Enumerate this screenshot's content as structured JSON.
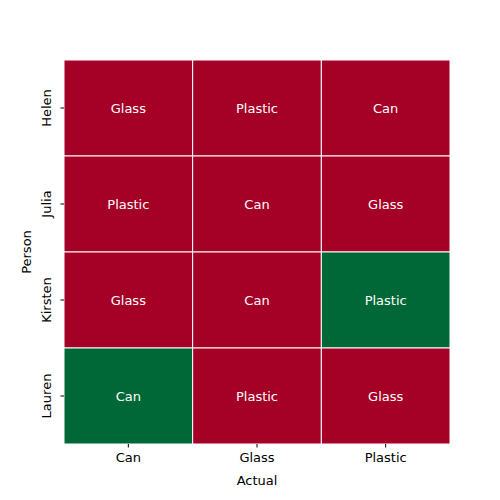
{
  "chart_data": {
    "type": "heatmap",
    "x_label": "Actual",
    "y_label": "Person",
    "x_categories": [
      "Can",
      "Glass",
      "Plastic"
    ],
    "y_categories": [
      "Helen",
      "Julia",
      "Kirsten",
      "Lauren"
    ],
    "values": [
      [
        0,
        0,
        0
      ],
      [
        0,
        0,
        0
      ],
      [
        0,
        0,
        1
      ],
      [
        1,
        0,
        0
      ]
    ],
    "value_labels": [
      [
        "Glass",
        "Plastic",
        "Can"
      ],
      [
        "Plastic",
        "Can",
        "Glass"
      ],
      [
        "Glass",
        "Can",
        "Plastic"
      ],
      [
        "Can",
        "Plastic",
        "Glass"
      ]
    ],
    "zlim": [
      0,
      1
    ],
    "colors": [
      "#a50026",
      "#006837"
    ],
    "data_labels": true
  }
}
